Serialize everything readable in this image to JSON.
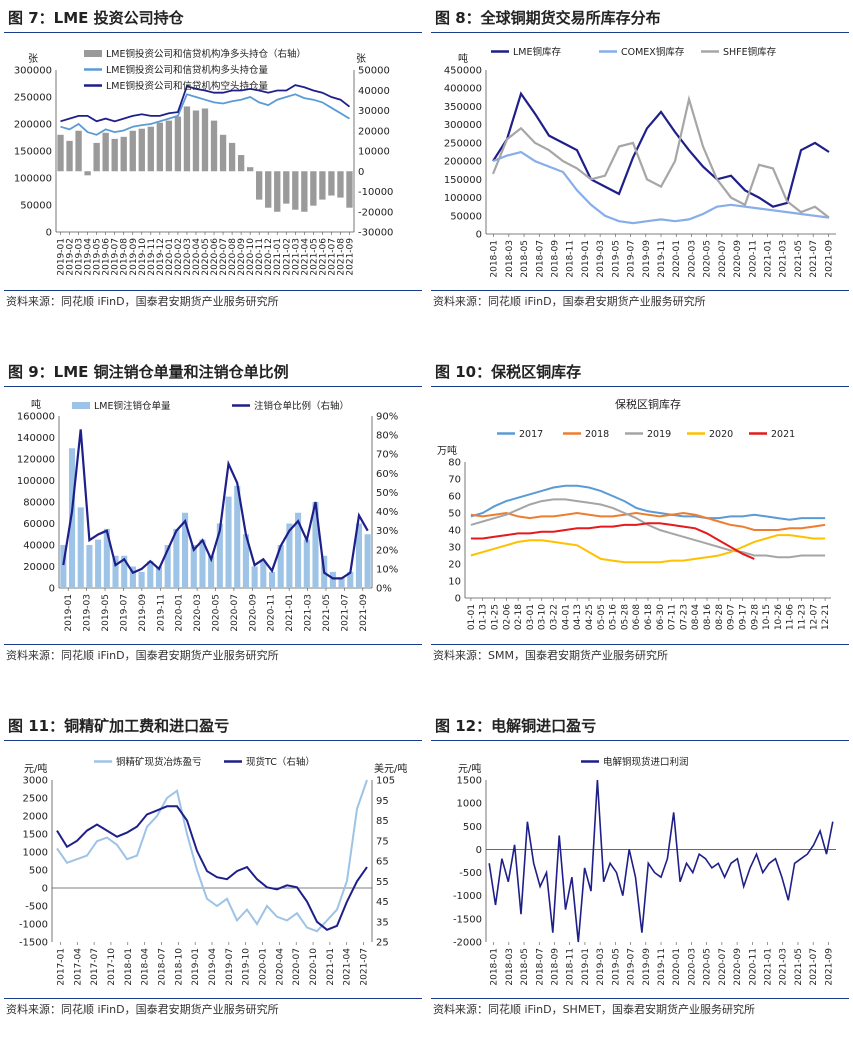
{
  "panels": [
    {
      "title": "图 7：LME 投资公司持仓",
      "source": "资料来源：同花顺 iFinD，国泰君安期货产业服务研究所"
    },
    {
      "title": "图 8：全球铜期货交易所库存分布",
      "source": "资料来源：同花顺 iFinD，国泰君安期货产业服务研究所"
    },
    {
      "title": "图 9：LME 铜注销仓单量和注销仓单比例",
      "source": "资料来源：同花顺 iFinD，国泰君安期货产业服务研究所"
    },
    {
      "title": "图 10：保税区铜库存",
      "source": "资料来源：SMM，国泰君安期货产业服务研究所"
    },
    {
      "title": "图 11：铜精矿加工费和进口盈亏",
      "source": "资料来源：同花顺 iFinD，国泰君安期货产业服务研究所"
    },
    {
      "title": "图 12：电解铜进口盈亏",
      "source": "资料来源：同花顺 iFinD，SHMET，国泰君安期货产业服务研究所"
    }
  ],
  "chart_data": [
    {
      "type": "bar",
      "ylabel": "张",
      "ylabel_right": "张",
      "ylim": [
        0,
        300000
      ],
      "yticks": [
        0,
        50000,
        100000,
        150000,
        200000,
        250000,
        300000
      ],
      "ylim_right": [
        -30000,
        50000
      ],
      "yticks_right": [
        -30000,
        -20000,
        -10000,
        0,
        10000,
        20000,
        30000,
        40000,
        50000
      ],
      "x_ticks": [
        "2019-01",
        "2019-02",
        "2019-03",
        "2019-04",
        "2019-05",
        "2019-06",
        "2019-07",
        "2019-08",
        "2019-09",
        "2019-10",
        "2019-11",
        "2019-12",
        "2020-01",
        "2020-02",
        "2020-03",
        "2020-04",
        "2020-05",
        "2020-06",
        "2020-07",
        "2020-08",
        "2020-09",
        "2020-10",
        "2020-11",
        "2020-12",
        "2021-01",
        "2021-02",
        "2021-03",
        "2021-04",
        "2021-05",
        "2021-06",
        "2021-07",
        "2021-08",
        "2021-09"
      ],
      "series": [
        {
          "name": "LME铜投资公司和信贷机构净多头持仓（右轴）",
          "kind": "bar",
          "color": "#9a9a9a",
          "values": [
            18000,
            15000,
            20000,
            -2000,
            14000,
            19000,
            16000,
            17000,
            20000,
            21000,
            22000,
            24000,
            25000,
            27000,
            32000,
            30000,
            31000,
            25000,
            18000,
            14000,
            8000,
            2000,
            -14000,
            -18000,
            -20000,
            -16000,
            -19000,
            -20000,
            -17000,
            -14000,
            -12000,
            -13000,
            -18000
          ]
        },
        {
          "name": "LME铜投资公司和信贷机构多头持仓量",
          "kind": "line",
          "color": "#5b9bd5",
          "values": [
            195000,
            190000,
            200000,
            185000,
            180000,
            190000,
            185000,
            188000,
            195000,
            198000,
            200000,
            205000,
            210000,
            215000,
            255000,
            250000,
            245000,
            240000,
            238000,
            242000,
            245000,
            250000,
            240000,
            235000,
            245000,
            250000,
            255000,
            248000,
            245000,
            240000,
            230000,
            220000,
            210000
          ]
        },
        {
          "name": "LME铜投资公司和信贷机构空头持仓量",
          "kind": "line",
          "color": "#1f1f8a",
          "values": [
            205000,
            210000,
            215000,
            215000,
            205000,
            210000,
            205000,
            210000,
            215000,
            218000,
            215000,
            215000,
            220000,
            222000,
            270000,
            265000,
            262000,
            258000,
            258000,
            262000,
            262000,
            265000,
            262000,
            258000,
            262000,
            262000,
            272000,
            268000,
            262000,
            258000,
            250000,
            245000,
            232000
          ]
        }
      ]
    },
    {
      "type": "line",
      "ylabel": "吨",
      "ylim": [
        0,
        450000
      ],
      "yticks": [
        0,
        50000,
        100000,
        150000,
        200000,
        250000,
        300000,
        350000,
        400000,
        450000
      ],
      "x_ticks": [
        "2018-01",
        "2018-03",
        "2018-05",
        "2018-07",
        "2018-09",
        "2018-11",
        "2019-01",
        "2019-03",
        "2019-05",
        "2019-07",
        "2019-09",
        "2019-11",
        "2020-01",
        "2020-03",
        "2020-05",
        "2020-07",
        "2020-09",
        "2020-11",
        "2021-01",
        "2021-03",
        "2021-05",
        "2021-07",
        "2021-09"
      ],
      "series": [
        {
          "name": "LME铜库存",
          "color": "#1f1f8a",
          "values": [
            200000,
            260000,
            385000,
            330000,
            270000,
            250000,
            230000,
            150000,
            130000,
            110000,
            210000,
            290000,
            335000,
            280000,
            230000,
            185000,
            150000,
            160000,
            120000,
            100000,
            75000,
            85000,
            230000,
            250000,
            225000
          ]
        },
        {
          "name": "COMEX铜库存",
          "color": "#87aee8",
          "values": [
            200000,
            215000,
            225000,
            200000,
            185000,
            170000,
            120000,
            80000,
            50000,
            35000,
            30000,
            35000,
            40000,
            35000,
            40000,
            55000,
            75000,
            80000,
            75000,
            70000,
            65000,
            60000,
            55000,
            50000,
            45000
          ]
        },
        {
          "name": "SHFE铜库存",
          "color": "#a6a6a6",
          "values": [
            165000,
            260000,
            290000,
            250000,
            230000,
            200000,
            180000,
            150000,
            160000,
            240000,
            250000,
            150000,
            130000,
            200000,
            370000,
            240000,
            150000,
            100000,
            80000,
            190000,
            180000,
            90000,
            60000,
            75000,
            45000
          ]
        }
      ]
    },
    {
      "type": "bar",
      "ylabel": "吨",
      "ylim": [
        0,
        160000
      ],
      "yticks": [
        0,
        20000,
        40000,
        60000,
        80000,
        100000,
        120000,
        140000,
        160000
      ],
      "ylim_right": [
        0,
        90
      ],
      "yticks_right": [
        "0%",
        "10%",
        "20%",
        "30%",
        "40%",
        "50%",
        "60%",
        "70%",
        "80%",
        "90%"
      ],
      "x_ticks": [
        "2019-01",
        "2019-03",
        "2019-05",
        "2019-07",
        "2019-09",
        "2019-11",
        "2020-01",
        "2020-03",
        "2020-05",
        "2020-07",
        "2020-09",
        "2020-11",
        "2021-01",
        "2021-03",
        "2021-05",
        "2021-07",
        "2021-09"
      ],
      "series": [
        {
          "name": "LME铜注销仓单量",
          "kind": "bar",
          "color": "#9dc3e6",
          "values": [
            40000,
            130000,
            75000,
            40000,
            45000,
            55000,
            30000,
            30000,
            20000,
            15000,
            25000,
            20000,
            40000,
            55000,
            70000,
            40000,
            45000,
            30000,
            60000,
            85000,
            95000,
            50000,
            20000,
            25000,
            15000,
            40000,
            60000,
            70000,
            45000,
            80000,
            30000,
            15000,
            10000,
            15000,
            60000,
            50000
          ]
        },
        {
          "name": "注销仓单比例（右轴）",
          "kind": "line",
          "color": "#1f1f8a",
          "values": [
            12,
            40,
            83,
            25,
            28,
            30,
            12,
            15,
            8,
            10,
            14,
            10,
            20,
            30,
            35,
            20,
            25,
            15,
            30,
            65,
            55,
            28,
            12,
            15,
            9,
            22,
            30,
            35,
            25,
            45,
            8,
            5,
            5,
            8,
            38,
            30
          ]
        }
      ]
    },
    {
      "type": "line",
      "title": "保税区铜库存",
      "ylabel": "万吨",
      "ylim": [
        0,
        80
      ],
      "yticks": [
        0,
        10,
        20,
        30,
        40,
        50,
        60,
        70,
        80
      ],
      "x_ticks": [
        "01-01",
        "01-13",
        "01-25",
        "02-06",
        "02-18",
        "03-01",
        "03-10",
        "03-22",
        "04-01",
        "04-13",
        "04-25",
        "05-05",
        "05-16",
        "05-28",
        "06-08",
        "06-18",
        "06-30",
        "07-11",
        "07-23",
        "08-04",
        "08-16",
        "08-28",
        "09-07",
        "09-17",
        "09-28",
        "10-15",
        "10-26",
        "11-06",
        "11-23",
        "12-07",
        "12-21"
      ],
      "series": [
        {
          "name": "2017",
          "color": "#5b9bd5",
          "values": [
            48,
            50,
            54,
            57,
            59,
            61,
            63,
            65,
            66,
            66,
            65,
            63,
            60,
            57,
            53,
            51,
            50,
            49,
            48,
            48,
            47,
            47,
            48,
            48,
            49,
            48,
            47,
            46,
            47,
            47,
            47
          ]
        },
        {
          "name": "2018",
          "color": "#ed7d31",
          "values": [
            49,
            48,
            49,
            50,
            48,
            47,
            48,
            48,
            49,
            50,
            49,
            48,
            48,
            49,
            50,
            49,
            48,
            49,
            50,
            49,
            47,
            45,
            43,
            42,
            40,
            40,
            40,
            41,
            41,
            42,
            43
          ]
        },
        {
          "name": "2019",
          "color": "#a5a5a5",
          "values": [
            43,
            45,
            47,
            49,
            52,
            55,
            57,
            58,
            58,
            57,
            56,
            55,
            53,
            50,
            47,
            43,
            40,
            38,
            36,
            34,
            32,
            30,
            28,
            27,
            25,
            25,
            24,
            24,
            25,
            25,
            25
          ]
        },
        {
          "name": "2020",
          "color": "#ffc000",
          "values": [
            25,
            27,
            29,
            31,
            33,
            34,
            34,
            33,
            32,
            31,
            27,
            23,
            22,
            21,
            21,
            21,
            21,
            22,
            22,
            23,
            24,
            25,
            27,
            30,
            33,
            35,
            37,
            37,
            36,
            35,
            35
          ]
        },
        {
          "name": "2021",
          "color": "#e41a1c",
          "values": [
            35,
            35,
            36,
            37,
            38,
            38,
            39,
            39,
            40,
            41,
            41,
            42,
            42,
            43,
            43,
            44,
            44,
            43,
            42,
            41,
            38,
            34,
            30,
            26,
            23
          ]
        }
      ]
    },
    {
      "type": "line",
      "ylabel": "元/吨",
      "ylabel_right": "美元/吨",
      "ylim": [
        -1500,
        3000
      ],
      "yticks": [
        -1500,
        -1000,
        -500,
        0,
        500,
        1000,
        1500,
        2000,
        2500,
        3000
      ],
      "ylim_right": [
        25,
        105
      ],
      "yticks_right": [
        25,
        35,
        45,
        55,
        65,
        75,
        85,
        95,
        105
      ],
      "x_ticks": [
        "2017-01",
        "2017-04",
        "2017-07",
        "2017-10",
        "2018-01",
        "2018-04",
        "2018-07",
        "2018-10",
        "2019-01",
        "2019-04",
        "2019-07",
        "2019-10",
        "2020-01",
        "2020-04",
        "2020-07",
        "2020-10",
        "2021-01",
        "2021-04",
        "2021-07"
      ],
      "series": [
        {
          "name": "铜精矿现货冶炼盈亏",
          "color": "#9dc3e6",
          "values": [
            1100,
            700,
            800,
            900,
            1300,
            1400,
            1200,
            800,
            900,
            1700,
            2000,
            2500,
            2700,
            1500,
            500,
            -300,
            -500,
            -300,
            -900,
            -600,
            -1000,
            -500,
            -800,
            -900,
            -700,
            -1100,
            -1200,
            -900,
            -600,
            200,
            2200,
            3000
          ]
        },
        {
          "name": "现货TC（右轴）",
          "color": "#1f1f8a",
          "values": [
            80,
            72,
            75,
            80,
            83,
            80,
            77,
            79,
            82,
            88,
            90,
            92,
            92,
            85,
            70,
            60,
            57,
            56,
            60,
            62,
            56,
            52,
            51,
            53,
            52,
            45,
            35,
            31,
            33,
            45,
            55,
            62
          ]
        }
      ]
    },
    {
      "type": "line",
      "ylabel": "元/吨",
      "ylim": [
        -2000,
        1500
      ],
      "yticks": [
        -2000,
        -1500,
        -1000,
        -500,
        0,
        500,
        1000,
        1500
      ],
      "x_ticks": [
        "2018-01",
        "2018-03",
        "2018-05",
        "2018-07",
        "2018-09",
        "2018-11",
        "2019-01",
        "2019-03",
        "2019-05",
        "2019-07",
        "2019-09",
        "2019-11",
        "2020-01",
        "2020-03",
        "2020-05",
        "2020-07",
        "2020-09",
        "2020-11",
        "2021-01",
        "2021-03",
        "2021-05",
        "2021-07",
        "2021-09"
      ],
      "series": [
        {
          "name": "电解铜现货进口利润",
          "color": "#1f1f8a",
          "values": [
            -300,
            -1200,
            -200,
            -700,
            100,
            -1400,
            600,
            -300,
            -800,
            -500,
            -1800,
            300,
            -1300,
            -600,
            -2000,
            -400,
            -900,
            1500,
            -700,
            -300,
            -500,
            -1000,
            0,
            -600,
            -1800,
            -300,
            -500,
            -600,
            -200,
            800,
            -700,
            -300,
            -500,
            -100,
            -200,
            -400,
            -300,
            -600,
            -300,
            -200,
            -800,
            -400,
            -100,
            -500,
            -300,
            -200,
            -600,
            -1100,
            -300,
            -200,
            -100,
            100,
            400,
            -100,
            600
          ]
        }
      ]
    }
  ]
}
